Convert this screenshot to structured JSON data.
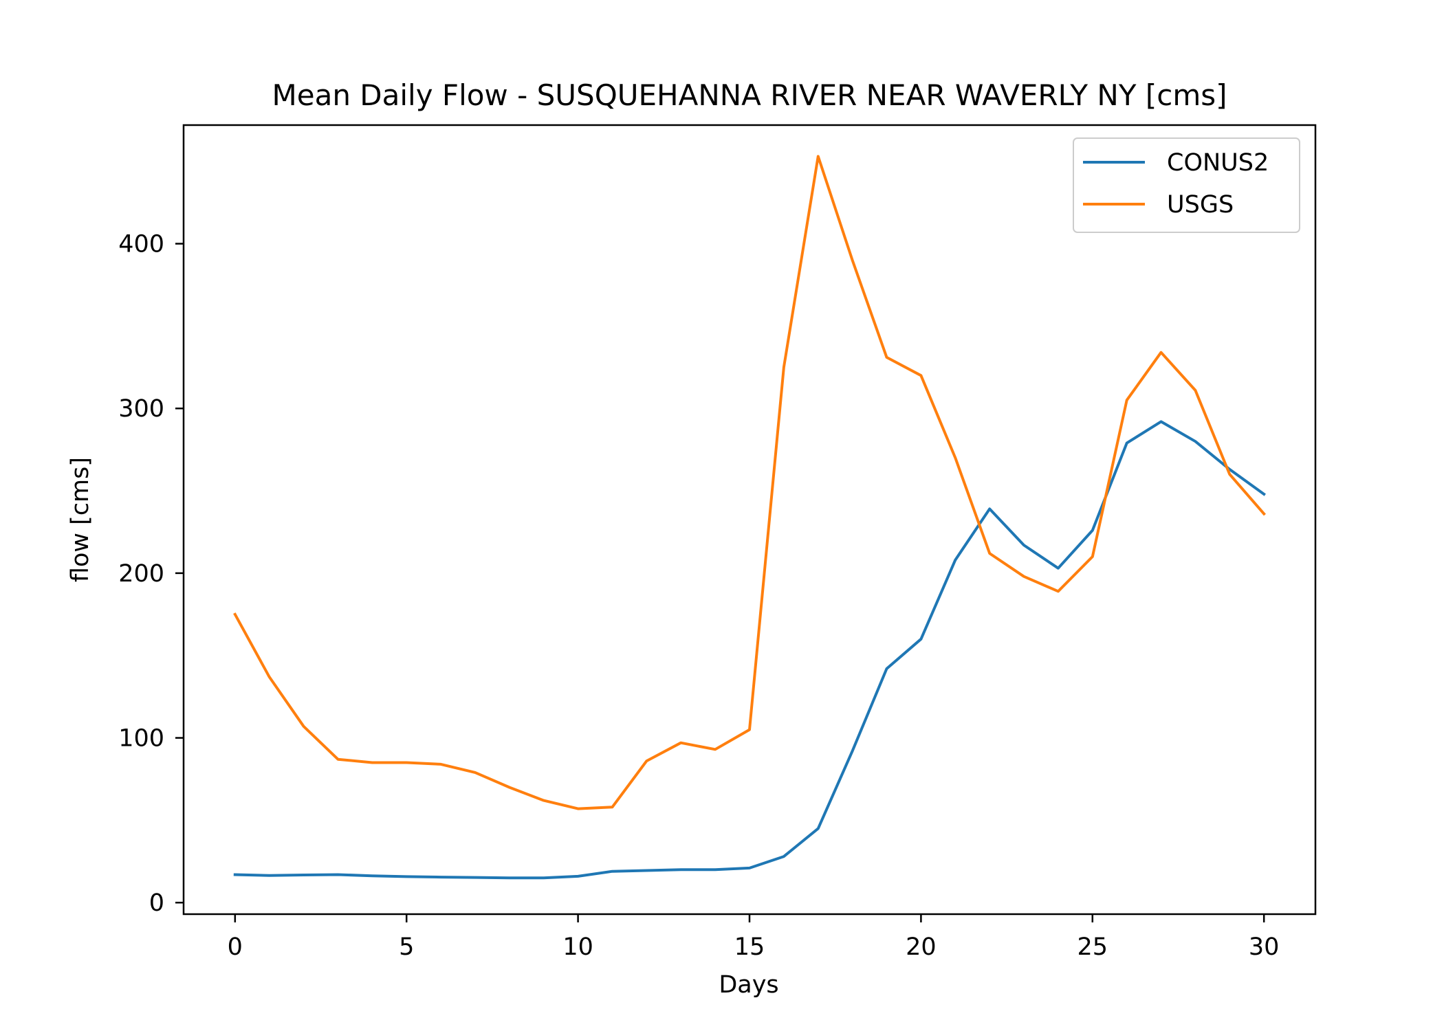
{
  "chart_data": {
    "type": "line",
    "title": "Mean Daily Flow - SUSQUEHANNA RIVER NEAR WAVERLY NY [cms]",
    "xlabel": "Days",
    "ylabel": "flow [cms]",
    "xlim": [
      -1.5,
      31.5
    ],
    "ylim": [
      -7,
      472
    ],
    "x_ticks": [
      0,
      5,
      10,
      15,
      20,
      25,
      30
    ],
    "y_ticks": [
      0,
      100,
      200,
      300,
      400
    ],
    "grid": false,
    "legend_position": "top-right",
    "x": [
      0,
      1,
      2,
      3,
      4,
      5,
      6,
      7,
      8,
      9,
      10,
      11,
      12,
      13,
      14,
      15,
      16,
      17,
      18,
      19,
      20,
      21,
      22,
      23,
      24,
      25,
      26,
      27,
      28,
      29,
      30
    ],
    "series": [
      {
        "name": "CONUS2",
        "color": "#1f77b4",
        "values": [
          17,
          16.5,
          16.8,
          17,
          16.3,
          15.8,
          15.5,
          15.3,
          15,
          15,
          16,
          19,
          19.5,
          20,
          20,
          21,
          28,
          45,
          92,
          142,
          160,
          208,
          239,
          217,
          203,
          226,
          279,
          292,
          280,
          263,
          248
        ]
      },
      {
        "name": "USGS",
        "color": "#ff7f0e",
        "values": [
          175,
          137,
          107,
          87,
          85,
          85,
          84,
          79,
          70,
          62,
          57,
          58,
          86,
          97,
          93,
          105,
          325,
          453,
          390,
          331,
          320,
          270,
          212,
          198,
          189,
          210,
          305,
          334,
          311,
          260,
          236
        ]
      }
    ]
  }
}
